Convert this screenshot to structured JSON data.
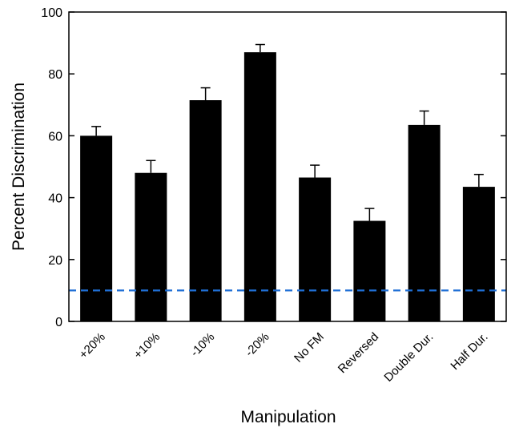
{
  "chart_data": {
    "type": "bar",
    "title": "",
    "xlabel": "Manipulation",
    "ylabel": "Percent Discrimination",
    "ylim": [
      0,
      100
    ],
    "yticks": [
      0,
      20,
      40,
      60,
      80,
      100
    ],
    "grid": false,
    "categories": [
      "+20%",
      "+10%",
      "-10%",
      "-20%",
      "No FM",
      "Reversed",
      "Double Dur.",
      "Half Dur."
    ],
    "values": [
      60,
      48,
      71.5,
      87,
      46.5,
      32.5,
      63.5,
      43.5
    ],
    "error_upper": [
      63,
      52,
      75.5,
      89.5,
      50.5,
      36.5,
      68,
      47.5
    ],
    "reference_line": {
      "value": 10,
      "style": "dashed",
      "color": "#1f6fd6"
    },
    "bar_color": "#000000"
  }
}
